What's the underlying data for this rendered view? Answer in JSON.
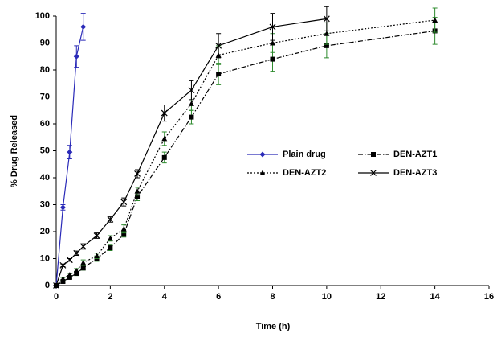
{
  "chart_data": {
    "type": "line",
    "xlabel": "Time (h)",
    "ylabel": "% Drug Released",
    "xlim": [
      0,
      16
    ],
    "xticks": [
      0,
      2,
      4,
      6,
      8,
      10,
      12,
      14,
      16
    ],
    "ylim": [
      0,
      100
    ],
    "yticks": [
      0,
      10,
      20,
      30,
      40,
      50,
      60,
      70,
      80,
      90,
      100
    ],
    "grid": false,
    "legend": "center-right",
    "series": [
      {
        "name": "Plain drug",
        "color": "#2a2ab8",
        "error_color": "#2a2ab8",
        "marker": "diamond",
        "line_style": "solid",
        "x": [
          0,
          0.25,
          0.5,
          0.75,
          1
        ],
        "values": [
          0,
          29,
          49.5,
          85,
          96
        ],
        "errors": [
          0.5,
          1,
          2.5,
          4,
          5
        ]
      },
      {
        "name": "DEN-AZT1",
        "color": "#000000",
        "error_color": "#2e8b2e",
        "marker": "square",
        "line_style": "dash-dot",
        "x": [
          0,
          0.25,
          0.5,
          0.75,
          1,
          1.5,
          2,
          2.5,
          3,
          4,
          5,
          6,
          8,
          10,
          14
        ],
        "values": [
          0,
          1.5,
          3,
          4.5,
          6.5,
          10,
          14,
          19,
          33,
          47.5,
          62.5,
          78.5,
          84,
          89,
          94.5
        ],
        "errors": [
          0.3,
          0.5,
          0.5,
          0.8,
          0.8,
          1,
          1,
          1,
          1.5,
          2,
          2.5,
          4,
          4.5,
          4.5,
          5
        ]
      },
      {
        "name": "DEN-AZT2",
        "color": "#000000",
        "error_color": "#2e8b2e",
        "marker": "triangle",
        "line_style": "dotted",
        "x": [
          0,
          0.25,
          0.5,
          0.75,
          1,
          1.5,
          2,
          2.5,
          3,
          4,
          5,
          6,
          8,
          10,
          14
        ],
        "values": [
          0,
          2.5,
          4,
          5.5,
          8.5,
          11,
          17.5,
          21,
          35,
          54.5,
          67.5,
          85.5,
          90,
          93.5,
          98.5
        ],
        "errors": [
          0.3,
          0.5,
          0.5,
          0.8,
          1,
          1,
          1,
          1.5,
          1.5,
          2.5,
          2.5,
          3.5,
          3.5,
          4,
          4.5
        ]
      },
      {
        "name": "DEN-AZT3",
        "color": "#000000",
        "error_color": "#000000",
        "marker": "x",
        "line_style": "solid",
        "x": [
          0,
          0.25,
          0.5,
          0.75,
          1,
          1.5,
          2,
          2.5,
          3,
          4,
          5,
          6,
          8,
          10
        ],
        "values": [
          0,
          7.5,
          9.5,
          12,
          14.5,
          18.5,
          24.5,
          31,
          41.5,
          64,
          72.5,
          89,
          96,
          99
        ],
        "errors": [
          0.3,
          0.5,
          0.5,
          0.8,
          1,
          1,
          1,
          1.5,
          1.5,
          3,
          3.5,
          4.5,
          5,
          4.5
        ]
      }
    ]
  }
}
